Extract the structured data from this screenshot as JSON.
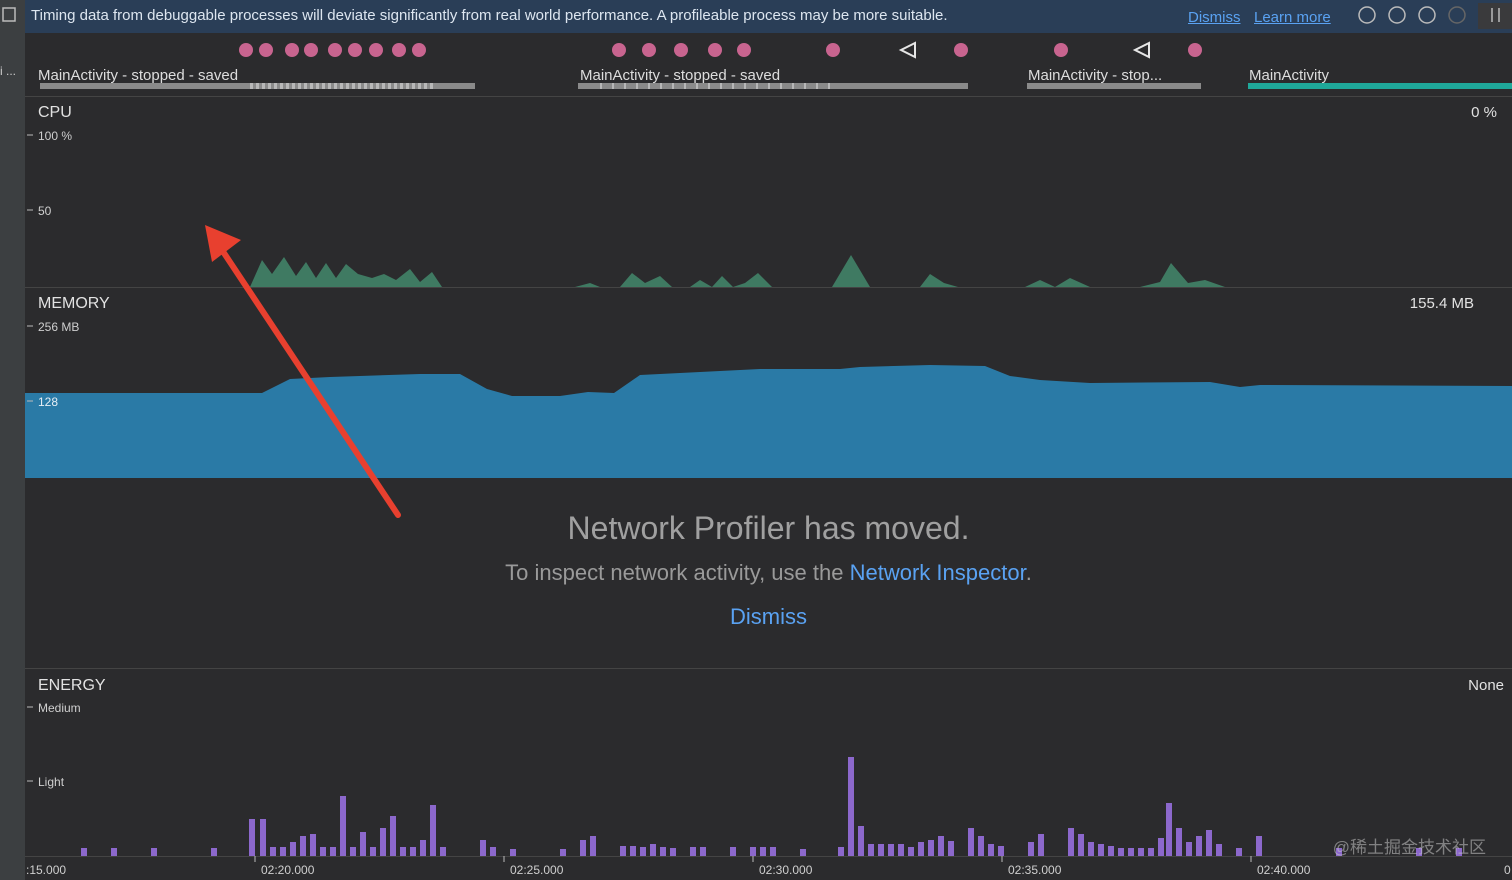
{
  "banner": {
    "message": "Timing data from debuggable processes will deviate significantly from real world performance. A profileable process may be more suitable.",
    "dismiss": "Dismiss",
    "learn_more": "Learn more"
  },
  "sidebar_label": "i ...",
  "sessions": [
    "MainActivity - stopped - saved",
    "MainActivity - stopped - saved",
    "MainActivity - stop...",
    "MainActivity"
  ],
  "cpu": {
    "title": "CPU",
    "ticks": [
      "100 %",
      "50"
    ],
    "current": "0 %"
  },
  "memory": {
    "title": "MEMORY",
    "ticks": [
      "256 MB",
      "128"
    ],
    "current": "155.4 MB"
  },
  "network_notice": {
    "title": "Network Profiler has moved.",
    "text": "To inspect network activity, use the",
    "link": "Network Inspector",
    "period": ".",
    "dismiss": "Dismiss"
  },
  "energy": {
    "title": "ENERGY",
    "ticks": [
      "Medium",
      "Light"
    ],
    "current": "None"
  },
  "time_axis": [
    ":15.000",
    "02:20.000",
    "02:25.000",
    "02:30.000",
    "02:35.000",
    "02:40.000",
    "0"
  ],
  "watermark": "@稀土掘金技术社区"
}
